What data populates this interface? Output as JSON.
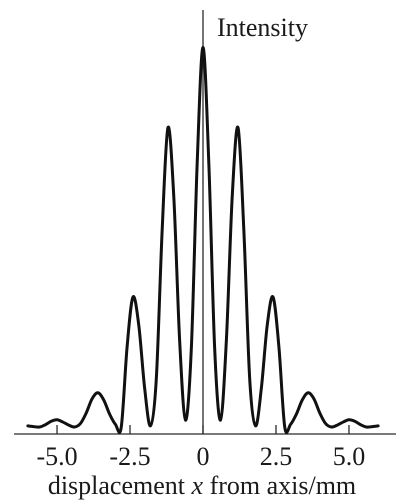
{
  "chart_data": {
    "type": "line",
    "title": "",
    "ylabel": "Intensity",
    "xlabel_parts": [
      "displacement ",
      "x",
      " from axis/mm"
    ],
    "xlim": [
      -6.2,
      6.2
    ],
    "ylim": [
      0,
      1.0
    ],
    "xticks": [
      -5.0,
      -2.5,
      0,
      2.5,
      5.0
    ],
    "xtick_labels": [
      "-5.0",
      "-2.5",
      "0",
      "2.5",
      "5.0"
    ],
    "grid": false,
    "legend": "none",
    "series": [
      {
        "x": [
          -6.0,
          -5.8,
          -5.6,
          -5.4,
          -5.2,
          -5.0,
          -4.8,
          -4.6,
          -4.4,
          -4.2,
          -4.0,
          -3.8,
          -3.6,
          -3.4,
          -3.2,
          -3.0,
          -2.8,
          -2.6,
          -2.4,
          -2.2,
          -2.0,
          -1.8,
          -1.6,
          -1.4,
          -1.2,
          -1.0,
          -0.8,
          -0.6,
          -0.4,
          -0.2,
          0.0,
          0.2,
          0.4,
          0.6,
          0.8,
          1.0,
          1.2,
          1.4,
          1.6,
          1.8,
          2.0,
          2.2,
          2.4,
          2.6,
          2.8,
          3.0,
          3.2,
          3.4,
          3.6,
          3.8,
          4.0,
          4.2,
          4.4,
          4.6,
          4.8,
          5.0,
          5.2,
          5.4,
          5.6,
          5.8,
          6.0
        ],
        "y": [
          0.003,
          0.001,
          0.0,
          0.006,
          0.015,
          0.019,
          0.013,
          0.005,
          0.0,
          0.009,
          0.037,
          0.074,
          0.09,
          0.071,
          0.034,
          0.007,
          0.0,
          0.211,
          0.342,
          0.268,
          0.103,
          0.003,
          0.126,
          0.516,
          0.788,
          0.605,
          0.227,
          0.018,
          0.206,
          0.693,
          0.999,
          0.693,
          0.206,
          0.018,
          0.227,
          0.605,
          0.788,
          0.516,
          0.126,
          0.003,
          0.103,
          0.268,
          0.342,
          0.211,
          0.0,
          0.007,
          0.034,
          0.071,
          0.09,
          0.074,
          0.037,
          0.009,
          0.0,
          0.005,
          0.013,
          0.019,
          0.015,
          0.006,
          0.0,
          0.001,
          0.003
        ]
      }
    ]
  }
}
